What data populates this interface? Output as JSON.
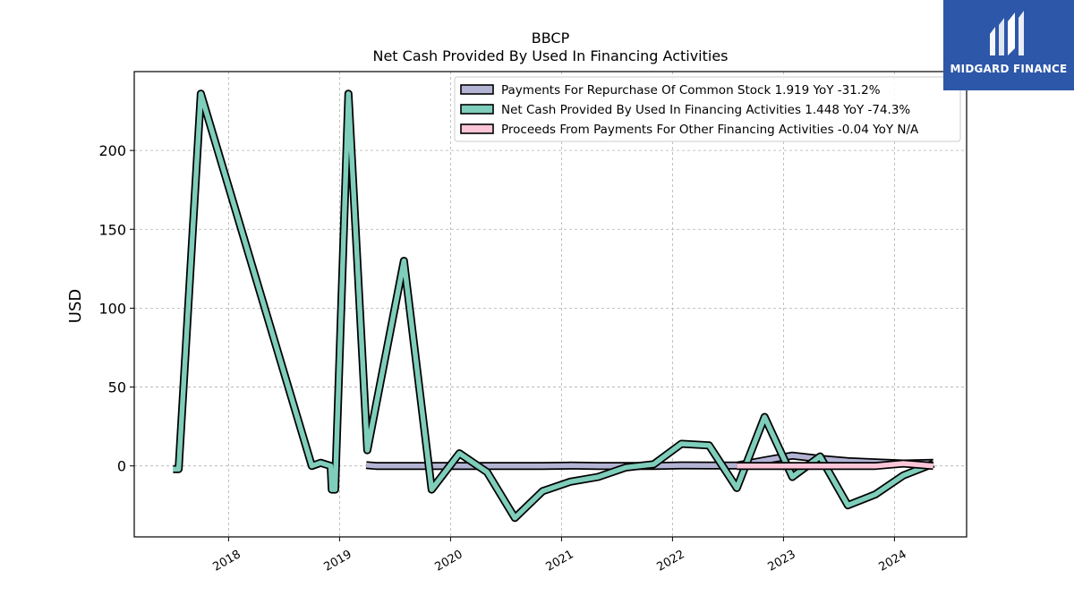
{
  "brand": {
    "name": "MIDGARD FINANCE",
    "color": "#2d57a8"
  },
  "chart_data": {
    "type": "line",
    "title": "BBCP",
    "subtitle": "Net Cash Provided By Used In Financing Activities",
    "ylabel": "USD",
    "xlabel": "",
    "ylim": [
      -45,
      250
    ],
    "xlim": [
      2017.15,
      2024.65
    ],
    "yticks": [
      0,
      50,
      100,
      150,
      200
    ],
    "xticks": [
      {
        "value": 2018.0,
        "label": "2018"
      },
      {
        "value": 2019.0,
        "label": "2019"
      },
      {
        "value": 2020.0,
        "label": "2020"
      },
      {
        "value": 2021.0,
        "label": "2021"
      },
      {
        "value": 2022.0,
        "label": "2022"
      },
      {
        "value": 2023.0,
        "label": "2023"
      },
      {
        "value": 2024.0,
        "label": "2024"
      }
    ],
    "grid": true,
    "legend_position": "top-right",
    "series": [
      {
        "name": "Payments For Repurchase Of Common Stock",
        "legend": "Payments For Repurchase Of Common Stock  1.919 YoY -31.2%",
        "color": "#b3b3d4",
        "x": [
          2019.24,
          2019.33,
          2019.58,
          2019.83,
          2020.08,
          2020.33,
          2020.58,
          2020.83,
          2021.08,
          2021.33,
          2021.58,
          2021.83,
          2022.08,
          2022.33,
          2022.58,
          2022.83,
          2023.08,
          2023.33,
          2023.58,
          2023.83,
          2024.08,
          2024.35
        ],
        "y": [
          0.5,
          0,
          0,
          0,
          0,
          0,
          0,
          0,
          0.2,
          0,
          0,
          0,
          0.3,
          0.2,
          0.2,
          3.5,
          6.5,
          4.5,
          3,
          2.2,
          1.5,
          1.9
        ]
      },
      {
        "name": "Net Cash Provided By Used In Financing Activities",
        "legend": "Net Cash Provided By Used In Financing Activities  1.448 YoY -74.3%",
        "color": "#7fcdbb",
        "x": [
          2017.5,
          2017.55,
          2017.75,
          2018.75,
          2018.83,
          2018.92,
          2018.93,
          2018.96,
          2019.08,
          2019.25,
          2019.58,
          2019.83,
          2020.08,
          2020.33,
          2020.58,
          2020.83,
          2021.08,
          2021.33,
          2021.58,
          2021.83,
          2022.08,
          2022.33,
          2022.58,
          2022.83,
          2023.08,
          2023.33,
          2023.58,
          2023.83,
          2024.08,
          2024.35
        ],
        "y": [
          -2,
          -2,
          236,
          0,
          2,
          0,
          -15,
          -15,
          236,
          10,
          130,
          -15,
          8,
          -4,
          -33,
          -16,
          -10,
          -7,
          -1,
          1,
          14,
          13,
          -14,
          31,
          -7,
          6,
          -25,
          -18,
          -6,
          1.4
        ]
      },
      {
        "name": "Proceeds From Payments For Other Financing Activities",
        "legend": "Proceeds From Payments For Other Financing Activities  -0.04 YoY N/A",
        "color": "#fcc5d8",
        "x": [
          2022.58,
          2022.83,
          2023.08,
          2023.33,
          2023.58,
          2023.83,
          2024.08,
          2024.35
        ],
        "y": [
          0,
          0,
          0,
          0,
          0,
          0,
          1.5,
          -0.04
        ]
      }
    ]
  }
}
